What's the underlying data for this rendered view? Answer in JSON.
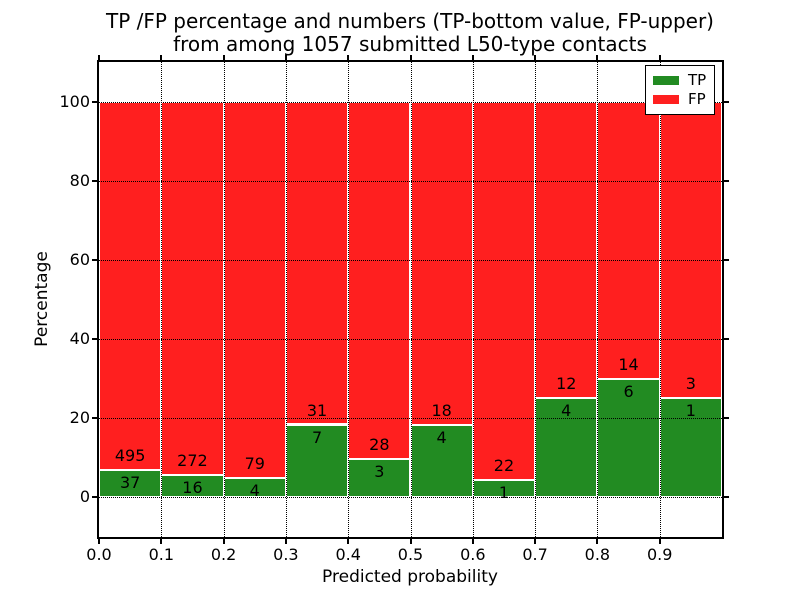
{
  "title": {
    "line1": "TP /FP percentage and numbers (TP-bottom value, FP-upper)",
    "line2": "from among 1057 submitted L50-type contacts"
  },
  "axes": {
    "xlabel": "Predicted probability",
    "ylabel": "Percentage",
    "x_tick_labels": [
      "0.0",
      "0.1",
      "0.2",
      "0.3",
      "0.4",
      "0.5",
      "0.6",
      "0.7",
      "0.8",
      "0.9"
    ],
    "y_tick_labels": [
      "0",
      "20",
      "40",
      "60",
      "80",
      "100"
    ],
    "xlim": [
      0.0,
      1.0
    ],
    "ylim": [
      -10,
      110
    ],
    "grid": "dotted"
  },
  "legend": {
    "items": [
      {
        "label": "TP",
        "color": "#228b22"
      },
      {
        "label": "FP",
        "color": "#ff1f1f"
      }
    ]
  },
  "chart_data": {
    "type": "bar",
    "stacked": true,
    "normalized_to_percent": true,
    "title": "TP /FP percentage and numbers (TP-bottom value, FP-upper) from among 1057 submitted L50-type contacts",
    "xlabel": "Predicted probability",
    "ylabel": "Percentage",
    "n_total": 1057,
    "bin_starts": [
      0.0,
      0.1,
      0.2,
      0.3,
      0.4,
      0.5,
      0.6,
      0.7,
      0.8,
      0.9
    ],
    "bin_width": 0.1,
    "series": [
      {
        "name": "TP",
        "color": "#228b22",
        "values": [
          37,
          16,
          4,
          7,
          3,
          4,
          1,
          4,
          6,
          1
        ]
      },
      {
        "name": "FP",
        "color": "#ff1f1f",
        "values": [
          495,
          272,
          79,
          31,
          28,
          18,
          22,
          12,
          14,
          3
        ]
      }
    ],
    "legend_position": "upper right",
    "ylim": [
      -10,
      110
    ],
    "xlim": [
      0.0,
      1.0
    ]
  }
}
